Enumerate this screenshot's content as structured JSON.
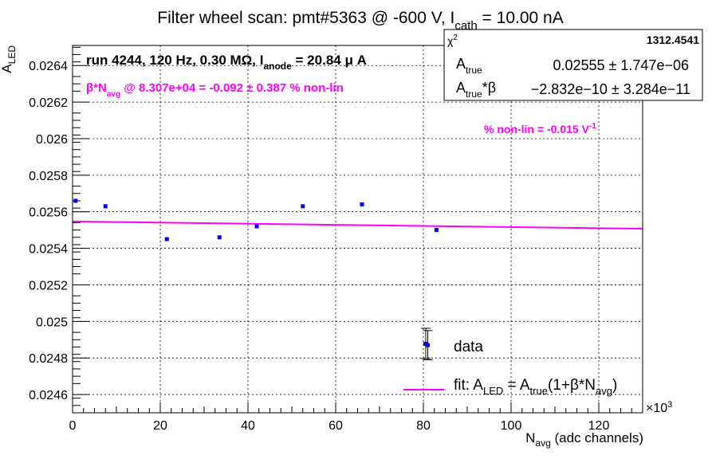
{
  "chart_data": {
    "type": "scatter",
    "title": {
      "main": "Filter wheel scan: pmt#5363 @  -600 V, I",
      "sub": "cath",
      "tail": " = 10.00 nA"
    },
    "xlabel": {
      "main": "N",
      "sub": "avg",
      "tail": " (adc channels)"
    },
    "ylabel": {
      "main": "A",
      "sub": "LED"
    },
    "x_multiplier": "×10",
    "x_multiplier_exp": "3",
    "xlim": [
      0,
      130
    ],
    "ylim": [
      0.0245,
      0.02651
    ],
    "x_ticks": [
      0,
      20,
      40,
      60,
      80,
      100,
      120
    ],
    "x_tick_labels": [
      "0",
      "20",
      "40",
      "60",
      "80",
      "100",
      "120"
    ],
    "y_ticks": [
      0.0246,
      0.0248,
      0.025,
      0.0252,
      0.0254,
      0.0256,
      0.0258,
      0.026,
      0.0262,
      0.0264
    ],
    "y_tick_labels": [
      "0.0246",
      "0.0248",
      "0.025",
      "0.0252",
      "0.0254",
      "0.0256",
      "0.0258",
      "0.026",
      "0.0262",
      "0.0264"
    ],
    "grid": true,
    "series": [
      {
        "name": "data",
        "color": "#0000ff",
        "points": [
          {
            "x": 0.7,
            "y": 0.02566
          },
          {
            "x": 7.5,
            "y": 0.02563
          },
          {
            "x": 21.5,
            "y": 0.02545
          },
          {
            "x": 33.5,
            "y": 0.02546
          },
          {
            "x": 42.0,
            "y": 0.02552
          },
          {
            "x": 52.5,
            "y": 0.02563
          },
          {
            "x": 66.0,
            "y": 0.02564
          },
          {
            "x": 81.0,
            "y": 0.02487,
            "err": 8e-05
          },
          {
            "x": 83.0,
            "y": 0.0255
          }
        ]
      },
      {
        "name": "fit",
        "color": "#ff00ff",
        "x": [
          0,
          130
        ],
        "y": [
          0.025547,
          0.025507
        ]
      }
    ],
    "annotations": {
      "run": {
        "main": "run 4244, 120 Hz, 0.30 M",
        "ohm": "Ω",
        "mid": ", I",
        "sub": "anode",
        "tail": " = 20.84 μ A"
      },
      "beta": {
        "main": "β*N",
        "sub": "avg",
        "tail": " @ 8.307e+04 = -0.092 ± 0.387 % non-lin"
      },
      "nonlin": {
        "main": "% non-lin = -0.015 V",
        "sup": "-1"
      }
    },
    "stats": {
      "chi2_label": "χ",
      "chi2_sup": "2",
      "chi2_value": "1312.4541",
      "row1_label": "A",
      "row1_sub": "true",
      "row1_value": "0.02555 ± 1.747e−06",
      "row2_label": "A",
      "row2_sub": "true",
      "row2_tail": "*β",
      "row2_value": "−2.832e−10 ± 3.284e−11"
    },
    "legend": {
      "position": "bottom-right",
      "data_label": "data",
      "fit_label": {
        "main": "fit: A",
        "sub1": "LED",
        "mid1": " = A",
        "sub2": "true",
        "mid2": "(1+β*N",
        "sub3": "avg",
        "tail": ")"
      }
    }
  }
}
